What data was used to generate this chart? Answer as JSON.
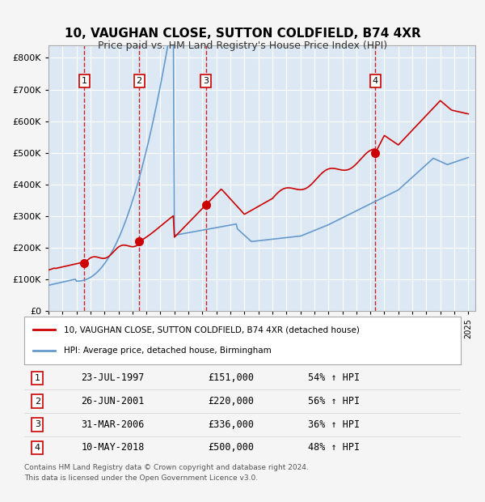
{
  "title": "10, VAUGHAN CLOSE, SUTTON COLDFIELD, B74 4XR",
  "subtitle": "Price paid vs. HM Land Registry's House Price Index (HPI)",
  "legend_label_red": "10, VAUGHAN CLOSE, SUTTON COLDFIELD, B74 4XR (detached house)",
  "legend_label_blue": "HPI: Average price, detached house, Birmingham",
  "footer_line1": "Contains HM Land Registry data © Crown copyright and database right 2024.",
  "footer_line2": "This data is licensed under the Open Government Licence v3.0.",
  "transactions": [
    {
      "num": 1,
      "date": "1997-07-23",
      "price": 151000,
      "pct": "54%",
      "year_x": 1997.56
    },
    {
      "num": 2,
      "date": "2001-06-26",
      "price": 220000,
      "pct": "56%",
      "year_x": 2001.48
    },
    {
      "num": 3,
      "date": "2006-03-31",
      "price": 336000,
      "pct": "36%",
      "year_x": 2006.25
    },
    {
      "num": 4,
      "date": "2018-05-10",
      "price": 500000,
      "pct": "48%",
      "year_x": 2018.36
    }
  ],
  "ylim": [
    0,
    840000
  ],
  "yticks": [
    0,
    100000,
    200000,
    300000,
    400000,
    500000,
    600000,
    700000,
    800000
  ],
  "xlim_start": 1995.0,
  "xlim_end": 2025.5,
  "background_color": "#dce9f5",
  "plot_bg": "#dce9f5",
  "grid_color": "#ffffff",
  "red_color": "#cc0000",
  "blue_color": "#6699cc",
  "dashed_color": "#cc0000",
  "table_rows": [
    {
      "num": 1,
      "date_str": "23-JUL-1997",
      "price_str": "£151,000",
      "pct_str": "54% ↑ HPI"
    },
    {
      "num": 2,
      "date_str": "26-JUN-2001",
      "price_str": "£220,000",
      "pct_str": "56% ↑ HPI"
    },
    {
      "num": 3,
      "date_str": "31-MAR-2006",
      "price_str": "£336,000",
      "pct_str": "36% ↑ HPI"
    },
    {
      "num": 4,
      "date_str": "10-MAY-2018",
      "price_str": "£500,000",
      "pct_str": "48% ↑ HPI"
    }
  ]
}
